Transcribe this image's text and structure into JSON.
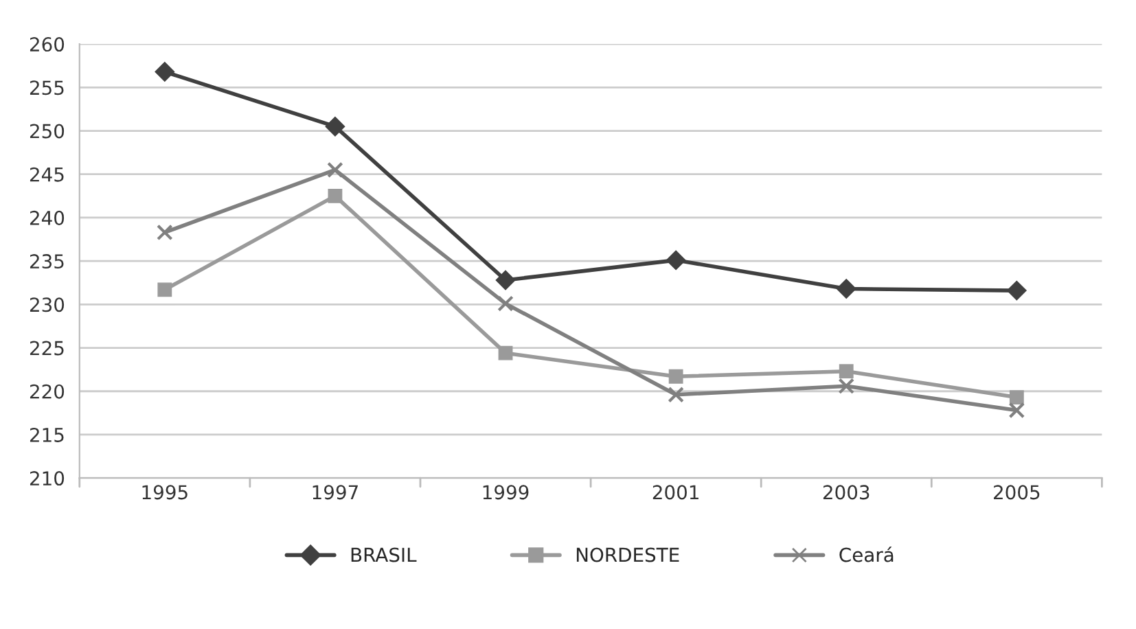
{
  "chart_data": {
    "type": "line",
    "categories": [
      "1995",
      "1997",
      "1999",
      "2001",
      "2003",
      "2005"
    ],
    "series": [
      {
        "name": "BRASIL",
        "color": "#404040",
        "marker": "diamond",
        "values": [
          256.8,
          250.5,
          232.8,
          235.1,
          231.8,
          231.6
        ]
      },
      {
        "name": "NORDESTE",
        "color": "#9a9a9a",
        "marker": "square",
        "values": [
          231.7,
          242.5,
          224.4,
          221.7,
          222.3,
          219.3
        ]
      },
      {
        "name": "Ceará",
        "color": "#808080",
        "marker": "cross",
        "values": [
          238.3,
          245.5,
          230.1,
          219.6,
          220.6,
          217.8
        ]
      }
    ],
    "ylim": [
      210,
      260
    ],
    "yticks": [
      210,
      215,
      220,
      225,
      230,
      235,
      240,
      245,
      250,
      255,
      260
    ],
    "grid": "y",
    "legend": "bottom",
    "line_style": "solid"
  }
}
